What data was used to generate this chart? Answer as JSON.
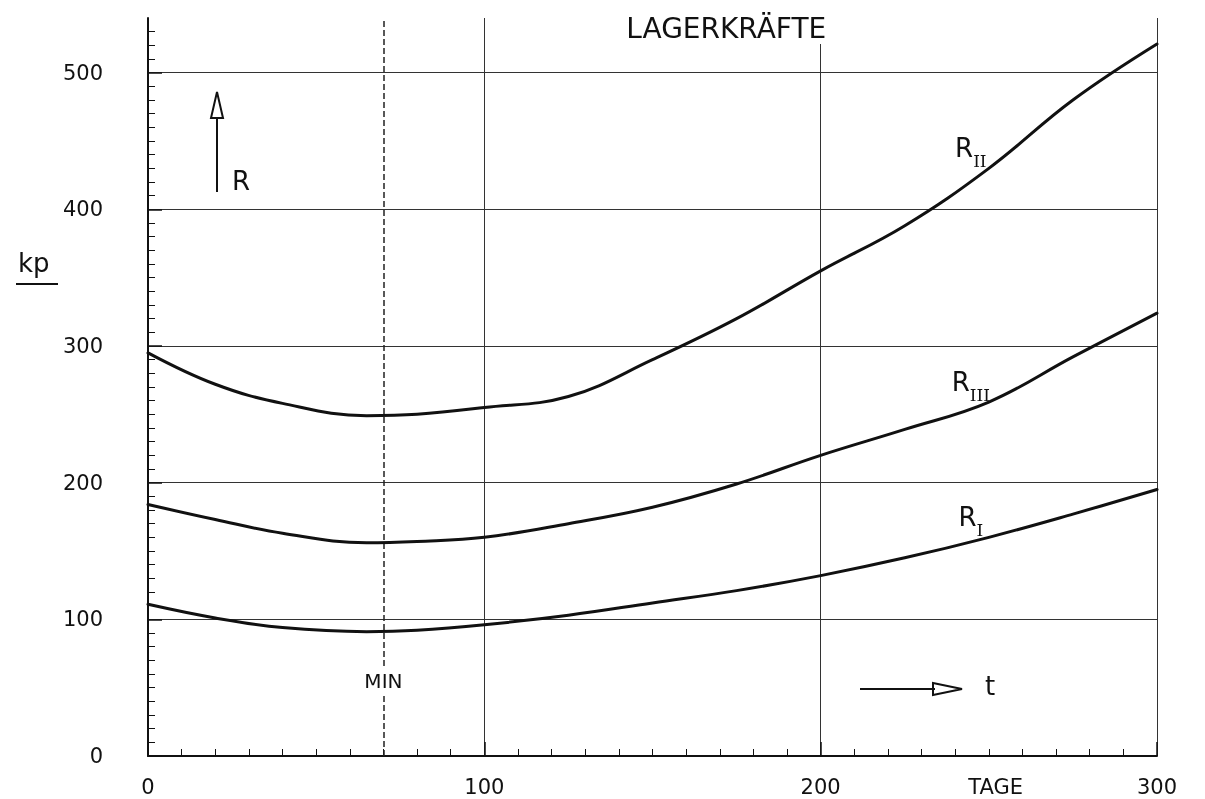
{
  "chart_data": {
    "type": "line",
    "title": "LAGERKRÄFTE",
    "xlabel": "TAGE",
    "ylabel": "kp",
    "annotations": [
      "R",
      "t"
    ],
    "x": [
      0,
      20,
      40,
      65,
      80,
      100,
      125,
      150,
      175,
      200,
      225,
      250,
      275,
      300
    ],
    "series": [
      {
        "name": "R$_{II}$",
        "color": "#111111",
        "values": [
          295,
          272,
          258,
          249,
          250,
          255,
          263,
          290,
          320,
          355,
          388,
          430,
          480,
          521
        ]
      },
      {
        "name": "R$_{III}$",
        "color": "#111111",
        "values": [
          184,
          173,
          163,
          156,
          157,
          160,
          170,
          182,
          199,
          220,
          239,
          259,
          292,
          324
        ]
      },
      {
        "name": "R$_{I}$",
        "color": "#111111",
        "values": [
          111,
          101,
          94,
          91,
          92,
          96,
          103,
          112,
          121,
          132,
          145,
          160,
          177,
          195
        ]
      }
    ],
    "xlim": [
      0,
      300
    ],
    "xticks": [
      0,
      100,
      200,
      300
    ],
    "ylim": [
      0,
      540
    ],
    "yticks": [
      0,
      100,
      200,
      300,
      400,
      500
    ],
    "ref_lines": [
      {
        "axis": "x",
        "value": 70,
        "label": "MIN",
        "line_style": "dashed"
      }
    ],
    "grid": true,
    "legend": false,
    "marker": "none",
    "line_style": "solid"
  }
}
